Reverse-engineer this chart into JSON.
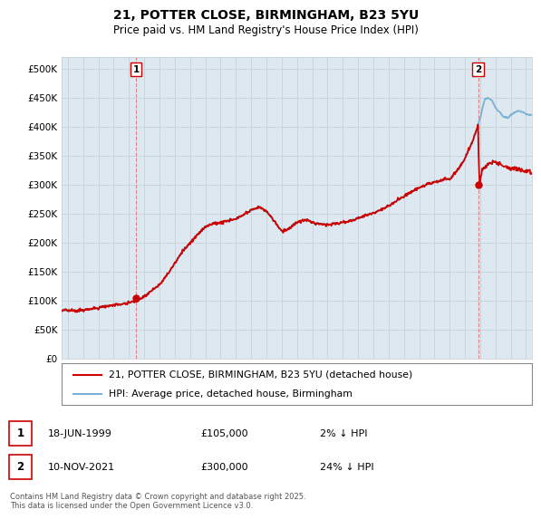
{
  "title1": "21, POTTER CLOSE, BIRMINGHAM, B23 5YU",
  "title2": "Price paid vs. HM Land Registry's House Price Index (HPI)",
  "ylim": [
    0,
    520000
  ],
  "yticks": [
    0,
    50000,
    100000,
    150000,
    200000,
    250000,
    300000,
    350000,
    400000,
    450000,
    500000
  ],
  "ytick_labels": [
    "£0",
    "£50K",
    "£100K",
    "£150K",
    "£200K",
    "£250K",
    "£300K",
    "£350K",
    "£400K",
    "£450K",
    "£500K"
  ],
  "xlim_start": 1994.6,
  "xlim_end": 2025.4,
  "hpi_color": "#7ab0d4",
  "price_color": "#cc0000",
  "marker_color": "#cc0000",
  "chart_bg": "#dde8f0",
  "legend_price_label": "21, POTTER CLOSE, BIRMINGHAM, B23 5YU (detached house)",
  "legend_hpi_label": "HPI: Average price, detached house, Birmingham",
  "transaction1_date": "18-JUN-1999",
  "transaction1_price": "£105,000",
  "transaction1_hpi": "2% ↓ HPI",
  "transaction1_x": 1999.46,
  "transaction1_y": 105000,
  "transaction2_date": "10-NOV-2021",
  "transaction2_price": "£300,000",
  "transaction2_hpi": "24% ↓ HPI",
  "transaction2_x": 2021.86,
  "transaction2_y": 300000,
  "footnote": "Contains HM Land Registry data © Crown copyright and database right 2025.\nThis data is licensed under the Open Government Licence v3.0.",
  "bg_color": "#ffffff",
  "grid_color": "#c0cdd6"
}
